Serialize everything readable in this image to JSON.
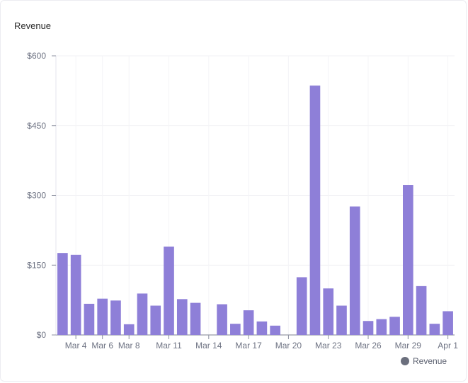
{
  "chart_data": {
    "type": "bar",
    "title": "Revenue",
    "xlabel": "",
    "ylabel": "",
    "ylim": [
      0,
      600
    ],
    "y_ticks": [
      "$0",
      "$150",
      "$300",
      "$450",
      "$600"
    ],
    "y_tick_values": [
      0,
      150,
      300,
      450,
      600
    ],
    "categories": [
      "Mar 3",
      "Mar 4",
      "Mar 5",
      "Mar 6",
      "Mar 7",
      "Mar 8",
      "Mar 9",
      "Mar 10",
      "Mar 11",
      "Mar 12",
      "Mar 13",
      "Mar 14",
      "Mar 15",
      "Mar 16",
      "Mar 17",
      "Mar 18",
      "Mar 19",
      "Mar 20",
      "Mar 21",
      "Mar 22",
      "Mar 23",
      "Mar 24",
      "Mar 25",
      "Mar 26",
      "Mar 27",
      "Mar 28",
      "Mar 29",
      "Mar 30",
      "Mar 31",
      "Apr 1"
    ],
    "x_tick_labels": [
      "Mar 4",
      "Mar 6",
      "Mar 8",
      "Mar 11",
      "Mar 14",
      "Mar 17",
      "Mar 20",
      "Mar 23",
      "Mar 26",
      "Mar 29",
      "Apr 1"
    ],
    "series": [
      {
        "name": "Revenue",
        "color": "#8e7fd8",
        "values": [
          176,
          172,
          67,
          78,
          74,
          23,
          89,
          63,
          190,
          77,
          69,
          0,
          66,
          24,
          53,
          29,
          20,
          0,
          124,
          536,
          100,
          63,
          276,
          30,
          34,
          39,
          322,
          105,
          24,
          51
        ]
      }
    ],
    "grid": true,
    "legend_position": "bottom-right"
  }
}
